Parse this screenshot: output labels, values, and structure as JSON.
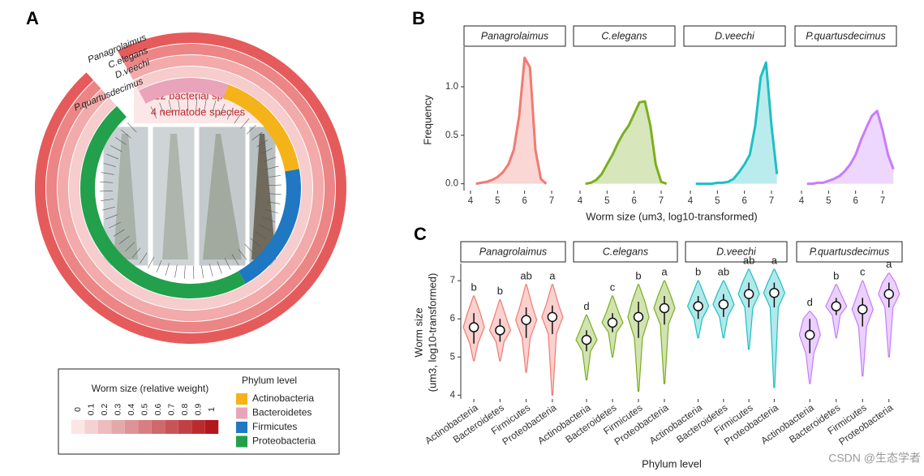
{
  "panel_labels": [
    "A",
    "B",
    "C"
  ],
  "heatmap": {
    "species_labels": [
      "Panagrolaimus",
      "C.elegans",
      "D.veechi",
      "P.quartusdecimus"
    ],
    "annotation": [
      "122 bacterial species",
      "4 nematode species"
    ],
    "legend_title": "Worm size (relative weight)",
    "scale_ticks": [
      0,
      0.1,
      0.2,
      0.3,
      0.4,
      0.5,
      0.6,
      0.7,
      0.8,
      0.9,
      1
    ],
    "low_color": "#fbe6e6",
    "high_color": "#b3161b",
    "phylum_title": "Phylum level",
    "phyla": [
      {
        "name": "Actinobacteria",
        "color": "#f5b31a"
      },
      {
        "name": "Bacteroidetes",
        "color": "#e9a3bb"
      },
      {
        "name": "Firmicutes",
        "color": "#1f78c1"
      },
      {
        "name": "Proteobacteria",
        "color": "#22a04b"
      }
    ]
  },
  "chart_data": [
    {
      "type": "density",
      "facets": [
        "Panagrolaimus",
        "C.elegans",
        "D.veechi",
        "P.quartusdecimus"
      ],
      "x": [
        4.2,
        4.4,
        4.6,
        4.8,
        5.0,
        5.2,
        5.4,
        5.6,
        5.8,
        6.0,
        6.2,
        6.4,
        6.6,
        6.8,
        7.0,
        7.2,
        7.4
      ],
      "series": [
        {
          "name": "Panagrolaimus",
          "color": "#f07b72",
          "values": [
            0.0,
            0.01,
            0.02,
            0.04,
            0.07,
            0.12,
            0.2,
            0.35,
            0.7,
            1.3,
            1.2,
            0.35,
            0.05,
            0.0,
            null,
            null,
            null
          ]
        },
        {
          "name": "C.elegans",
          "color": "#7cae1f",
          "values": [
            0.0,
            0.01,
            0.04,
            0.1,
            0.2,
            0.3,
            0.42,
            0.52,
            0.6,
            0.72,
            0.84,
            0.85,
            0.6,
            0.2,
            0.02,
            0.0,
            null
          ]
        },
        {
          "name": "D.veechi",
          "color": "#1fbfc3",
          "values": [
            0.0,
            0.0,
            0.0,
            0.0,
            0.01,
            0.01,
            0.02,
            0.05,
            0.12,
            0.2,
            0.3,
            0.6,
            1.1,
            1.25,
            0.6,
            0.1,
            null
          ]
        },
        {
          "name": "P.quartusdecimus",
          "color": "#c77cff",
          "values": [
            0.0,
            0.0,
            0.01,
            0.01,
            0.03,
            0.05,
            0.08,
            0.13,
            0.2,
            0.3,
            0.45,
            0.58,
            0.7,
            0.75,
            0.55,
            0.3,
            0.15
          ]
        }
      ],
      "xlim": [
        3.76,
        7.51
      ],
      "xticks": [
        4,
        5,
        6,
        7
      ],
      "ylim": [
        -0.07,
        1.41
      ],
      "yticks": [
        {
          "value": 0,
          "label": "0.0"
        },
        0.5,
        {
          "value": 1,
          "label": "1.0"
        }
      ],
      "ylabel": "Frequency",
      "xlabel": "Worm size (um3, log10-transformed)"
    },
    {
      "type": "violin",
      "facets": [
        "Panagrolaimus",
        "C.elegans",
        "D.veechi",
        "P.quartusdecimus"
      ],
      "categories": [
        "Actinobacteria",
        "Bacteroidetes",
        "Firmicutes",
        "Proteobacteria"
      ],
      "series": [
        {
          "name": "Panagrolaimus",
          "color": "#f07b72",
          "median": [
            5.78,
            5.7,
            5.97,
            6.05
          ],
          "low": [
            5.35,
            5.4,
            5.5,
            5.6
          ],
          "high": [
            6.15,
            6.0,
            6.3,
            6.35
          ],
          "min": [
            4.9,
            4.9,
            4.6,
            4.0
          ],
          "max": [
            6.6,
            6.5,
            6.9,
            6.9
          ],
          "letters": [
            "b",
            "b",
            "ab",
            "a"
          ]
        },
        {
          "name": "C.elegans",
          "color": "#7cae1f",
          "median": [
            5.45,
            5.9,
            6.05,
            6.28
          ],
          "low": [
            5.15,
            5.65,
            5.5,
            5.85
          ],
          "high": [
            5.7,
            6.15,
            6.45,
            6.6
          ],
          "min": [
            4.4,
            5.0,
            4.1,
            4.3
          ],
          "max": [
            6.1,
            6.6,
            6.9,
            7.0
          ],
          "letters": [
            "d",
            "c",
            "b",
            "a"
          ]
        },
        {
          "name": "D.veechi",
          "color": "#1fbfc3",
          "median": [
            6.33,
            6.38,
            6.65,
            6.68
          ],
          "low": [
            6.0,
            6.05,
            6.3,
            6.3
          ],
          "high": [
            6.6,
            6.65,
            6.95,
            6.95
          ],
          "min": [
            5.5,
            5.5,
            5.2,
            4.2
          ],
          "max": [
            7.0,
            7.0,
            7.3,
            7.3
          ],
          "letters": [
            "b",
            "ab",
            "ab",
            "a"
          ]
        },
        {
          "name": "P.quartusdecimus",
          "color": "#c77cff",
          "median": [
            5.58,
            6.33,
            6.25,
            6.65
          ],
          "low": [
            5.1,
            6.1,
            5.8,
            6.3
          ],
          "high": [
            6.0,
            6.55,
            6.55,
            6.95
          ],
          "min": [
            4.3,
            5.5,
            4.5,
            5.0
          ],
          "max": [
            6.2,
            6.9,
            7.0,
            7.2
          ],
          "letters": [
            "d",
            "b",
            "c",
            "a"
          ]
        }
      ],
      "ylim": [
        3.9,
        7.45
      ],
      "yticks": [
        4,
        5,
        6,
        7
      ],
      "ylabel": [
        "Worm size",
        "(um3, log10-transformed)"
      ],
      "xlabel": "Phylum level"
    }
  ],
  "watermark": "CSDN @生态学者"
}
